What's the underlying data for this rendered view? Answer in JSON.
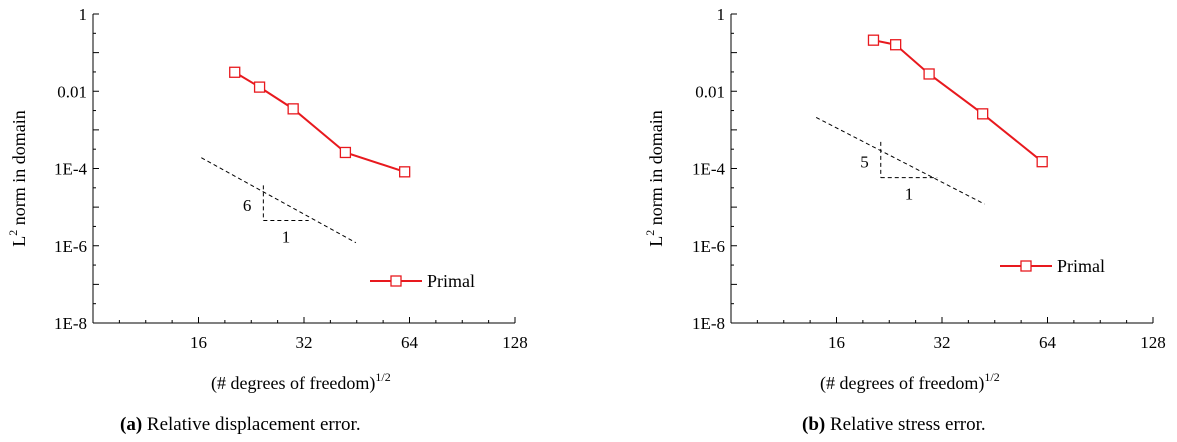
{
  "chart_data": [
    {
      "type": "line",
      "scale": "log-log",
      "xlabel": "(# degrees of freedom)",
      "xlabel_sup": "1/2",
      "ylabel": "L",
      "ylabel_sup": "2",
      "ylabel_rest": " norm in domain",
      "xlim": [
        8,
        128
      ],
      "ylim": [
        1e-08,
        1
      ],
      "x_ticks": [
        {
          "v": 16,
          "label": "16"
        },
        {
          "v": 32,
          "label": "32"
        },
        {
          "v": 64,
          "label": "64"
        },
        {
          "v": 128,
          "label": "128"
        }
      ],
      "y_ticks": [
        {
          "v": 1,
          "label": "1"
        },
        {
          "v": 0.01,
          "label": "0.01"
        },
        {
          "v": 0.0001,
          "label": "1E-4"
        },
        {
          "v": 1e-06,
          "label": "1E-6"
        },
        {
          "v": 1e-08,
          "label": "1E-8"
        }
      ],
      "series": [
        {
          "name": "Primal",
          "color": "#e8191e",
          "marker": "open-square",
          "x": [
            20.3,
            23.9,
            29.8,
            42.0,
            62.0
          ],
          "y": [
            0.031,
            0.0128,
            0.0035,
            0.00026,
            8.2e-05
          ]
        }
      ],
      "legend": {
        "position": "bottom-right"
      },
      "slope_guide": {
        "line": {
          "x": [
            16.3,
            45.0
          ],
          "y": [
            0.00019,
            1.2e-06
          ]
        },
        "rise_label": "6",
        "run_label": "1",
        "corner": {
          "x": 24.5,
          "y": 4.5e-06
        },
        "top": {
          "x": 24.5,
          "y": 3.67e-05
        },
        "right": {
          "x": 33.0,
          "y": 4.5e-06
        }
      },
      "caption": {
        "tag": "(a)",
        "text": " Relative displacement error."
      }
    },
    {
      "type": "line",
      "scale": "log-log",
      "xlabel": "(# degrees of freedom)",
      "xlabel_sup": "1/2",
      "ylabel": "L",
      "ylabel_sup": "2",
      "ylabel_rest": " norm in domain",
      "xlim": [
        8,
        128
      ],
      "ylim": [
        1e-08,
        1
      ],
      "x_ticks": [
        {
          "v": 16,
          "label": "16"
        },
        {
          "v": 32,
          "label": "32"
        },
        {
          "v": 64,
          "label": "64"
        },
        {
          "v": 128,
          "label": "128"
        }
      ],
      "y_ticks": [
        {
          "v": 1,
          "label": "1"
        },
        {
          "v": 0.01,
          "label": "0.01"
        },
        {
          "v": 0.0001,
          "label": "1E-4"
        },
        {
          "v": 1e-06,
          "label": "1E-6"
        },
        {
          "v": 1e-08,
          "label": "1E-8"
        }
      ],
      "series": [
        {
          "name": "Primal",
          "color": "#e8191e",
          "marker": "open-square",
          "x": [
            20.4,
            23.6,
            29.4,
            41.8,
            61.8
          ],
          "y": [
            0.21,
            0.16,
            0.028,
            0.0026,
            0.00015
          ]
        }
      ],
      "legend": {
        "position": "bottom-right"
      },
      "slope_guide": {
        "line": {
          "x": [
            14.0,
            42.3
          ],
          "y": [
            0.0021,
            1.2e-05
          ]
        },
        "rise_label": "5",
        "run_label": "1",
        "corner": {
          "x": 21.4,
          "y": 5.8e-05
        },
        "top": {
          "x": 21.4,
          "y": 0.00049
        },
        "right": {
          "x": 31.0,
          "y": 5.8e-05
        }
      },
      "caption": {
        "tag": "(b)",
        "text": " Relative stress error."
      }
    }
  ]
}
